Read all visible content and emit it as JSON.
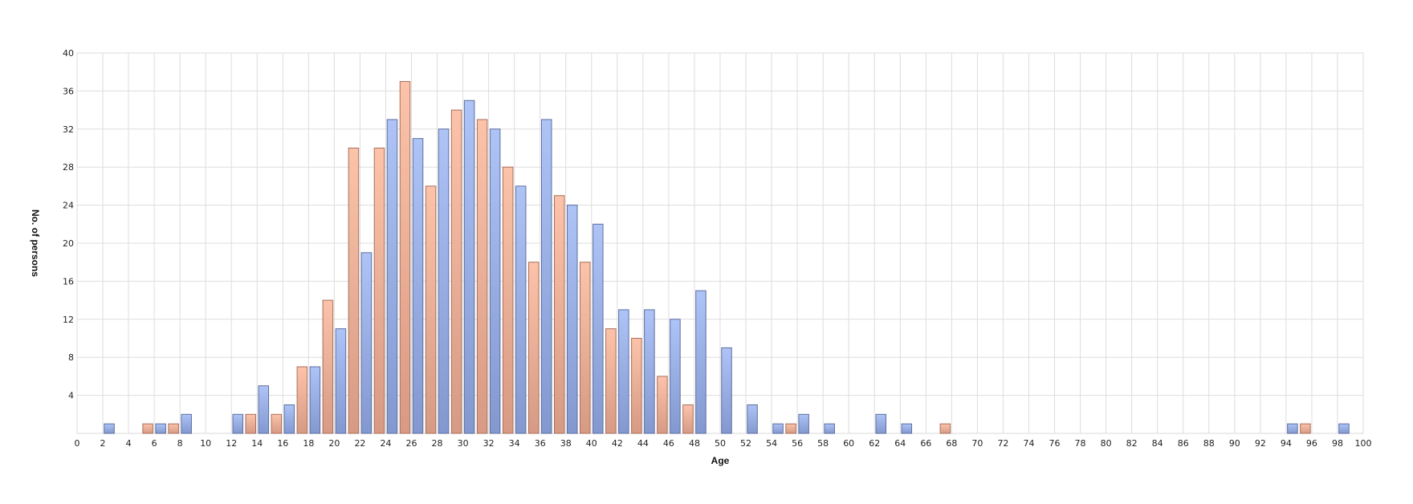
{
  "chart_data": {
    "type": "bar",
    "title": "",
    "xlabel": "Age",
    "ylabel": "No. of persons",
    "xlim": [
      0,
      100
    ],
    "ylim": [
      0,
      40
    ],
    "x_ticks": [
      0,
      2,
      4,
      6,
      8,
      10,
      12,
      14,
      16,
      18,
      20,
      22,
      24,
      26,
      28,
      30,
      32,
      34,
      36,
      38,
      40,
      42,
      44,
      46,
      48,
      50,
      52,
      54,
      56,
      58,
      60,
      62,
      64,
      66,
      68,
      70,
      72,
      74,
      76,
      78,
      80,
      82,
      84,
      86,
      88,
      90,
      92,
      94,
      96,
      98,
      100
    ],
    "y_ticks": [
      4,
      8,
      12,
      16,
      20,
      24,
      28,
      32,
      36,
      40
    ],
    "grid": true,
    "legend": "none",
    "colors": {
      "blue_top": "#aec4f7",
      "blue_bottom": "#8298cf",
      "blue_stroke": "#5d6e9e",
      "orange_top": "#fcc3aa",
      "orange_bottom": "#d79a84",
      "orange_stroke": "#a86f5c"
    },
    "series": [
      {
        "color_key": "blue",
        "points": [
          {
            "x": 2.5,
            "y": 1
          },
          {
            "x": 6.5,
            "y": 1
          },
          {
            "x": 8.5,
            "y": 2
          },
          {
            "x": 12.5,
            "y": 2
          },
          {
            "x": 14.5,
            "y": 5
          },
          {
            "x": 16.5,
            "y": 3
          },
          {
            "x": 18.5,
            "y": 7
          },
          {
            "x": 20.5,
            "y": 11
          },
          {
            "x": 22.5,
            "y": 19
          },
          {
            "x": 24.5,
            "y": 33
          },
          {
            "x": 26.5,
            "y": 31
          },
          {
            "x": 28.5,
            "y": 32
          },
          {
            "x": 30.5,
            "y": 35
          },
          {
            "x": 32.5,
            "y": 32
          },
          {
            "x": 34.5,
            "y": 26
          },
          {
            "x": 36.5,
            "y": 33
          },
          {
            "x": 38.5,
            "y": 24
          },
          {
            "x": 40.5,
            "y": 22
          },
          {
            "x": 42.5,
            "y": 13
          },
          {
            "x": 44.5,
            "y": 13
          },
          {
            "x": 46.5,
            "y": 12
          },
          {
            "x": 48.5,
            "y": 15
          },
          {
            "x": 50.5,
            "y": 9
          },
          {
            "x": 52.5,
            "y": 3
          },
          {
            "x": 54.5,
            "y": 1
          },
          {
            "x": 56.5,
            "y": 2
          },
          {
            "x": 58.5,
            "y": 1
          },
          {
            "x": 62.5,
            "y": 2
          },
          {
            "x": 64.5,
            "y": 1
          },
          {
            "x": 94.5,
            "y": 1
          },
          {
            "x": 98.5,
            "y": 1
          }
        ]
      },
      {
        "color_key": "orange",
        "points": [
          {
            "x": 5.5,
            "y": 1
          },
          {
            "x": 7.5,
            "y": 1
          },
          {
            "x": 13.5,
            "y": 2
          },
          {
            "x": 15.5,
            "y": 2
          },
          {
            "x": 17.5,
            "y": 7
          },
          {
            "x": 19.5,
            "y": 14
          },
          {
            "x": 21.5,
            "y": 30
          },
          {
            "x": 23.5,
            "y": 30
          },
          {
            "x": 25.5,
            "y": 37
          },
          {
            "x": 27.5,
            "y": 26
          },
          {
            "x": 29.5,
            "y": 34
          },
          {
            "x": 31.5,
            "y": 33
          },
          {
            "x": 33.5,
            "y": 28
          },
          {
            "x": 35.5,
            "y": 18
          },
          {
            "x": 37.5,
            "y": 25
          },
          {
            "x": 39.5,
            "y": 18
          },
          {
            "x": 41.5,
            "y": 11
          },
          {
            "x": 43.5,
            "y": 10
          },
          {
            "x": 45.5,
            "y": 6
          },
          {
            "x": 47.5,
            "y": 3
          },
          {
            "x": 55.5,
            "y": 1
          },
          {
            "x": 67.5,
            "y": 1
          },
          {
            "x": 95.5,
            "y": 1
          }
        ]
      }
    ]
  }
}
